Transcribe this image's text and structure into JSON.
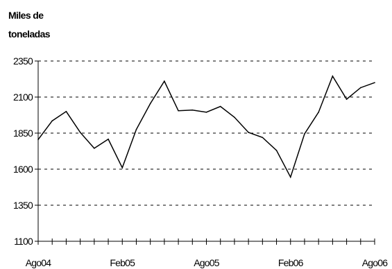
{
  "chart_data": {
    "type": "line",
    "ylabel_lines": [
      "Miles de",
      "toneladas"
    ],
    "ylim": [
      1100,
      2350
    ],
    "y_ticks": [
      1100,
      1350,
      1600,
      1850,
      2100,
      2350
    ],
    "y_tick_labels": [
      "1100",
      "1350",
      "1600",
      "1850",
      "2100",
      "2350"
    ],
    "x_tick_labels": [
      {
        "index": 0,
        "label": "Ago04"
      },
      {
        "index": 6,
        "label": "Feb05"
      },
      {
        "index": 12,
        "label": "Ago05"
      },
      {
        "index": 18,
        "label": "Feb06"
      },
      {
        "index": 24,
        "label": "Ago06"
      }
    ],
    "grid": "horizontal-dashed",
    "legend": "none",
    "series": [
      {
        "x": [
          "Ago04",
          "Sep04",
          "Oct04",
          "Nov04",
          "Dic04",
          "Ene05",
          "Feb05",
          "Mar05",
          "Abr05",
          "May05",
          "Jun05",
          "Jul05",
          "Ago05",
          "Sep05",
          "Oct05",
          "Nov05",
          "Dic05",
          "Ene06",
          "Feb06",
          "Mar06",
          "Abr06",
          "May06",
          "Jun06",
          "Jul06",
          "Ago06"
        ],
        "values": [
          1805,
          1935,
          2000,
          1855,
          1745,
          1808,
          1610,
          1875,
          2055,
          2210,
          2005,
          2010,
          1995,
          2035,
          1960,
          1855,
          1820,
          1730,
          1545,
          1845,
          1995,
          2245,
          2085,
          2165,
          2200
        ]
      }
    ]
  }
}
